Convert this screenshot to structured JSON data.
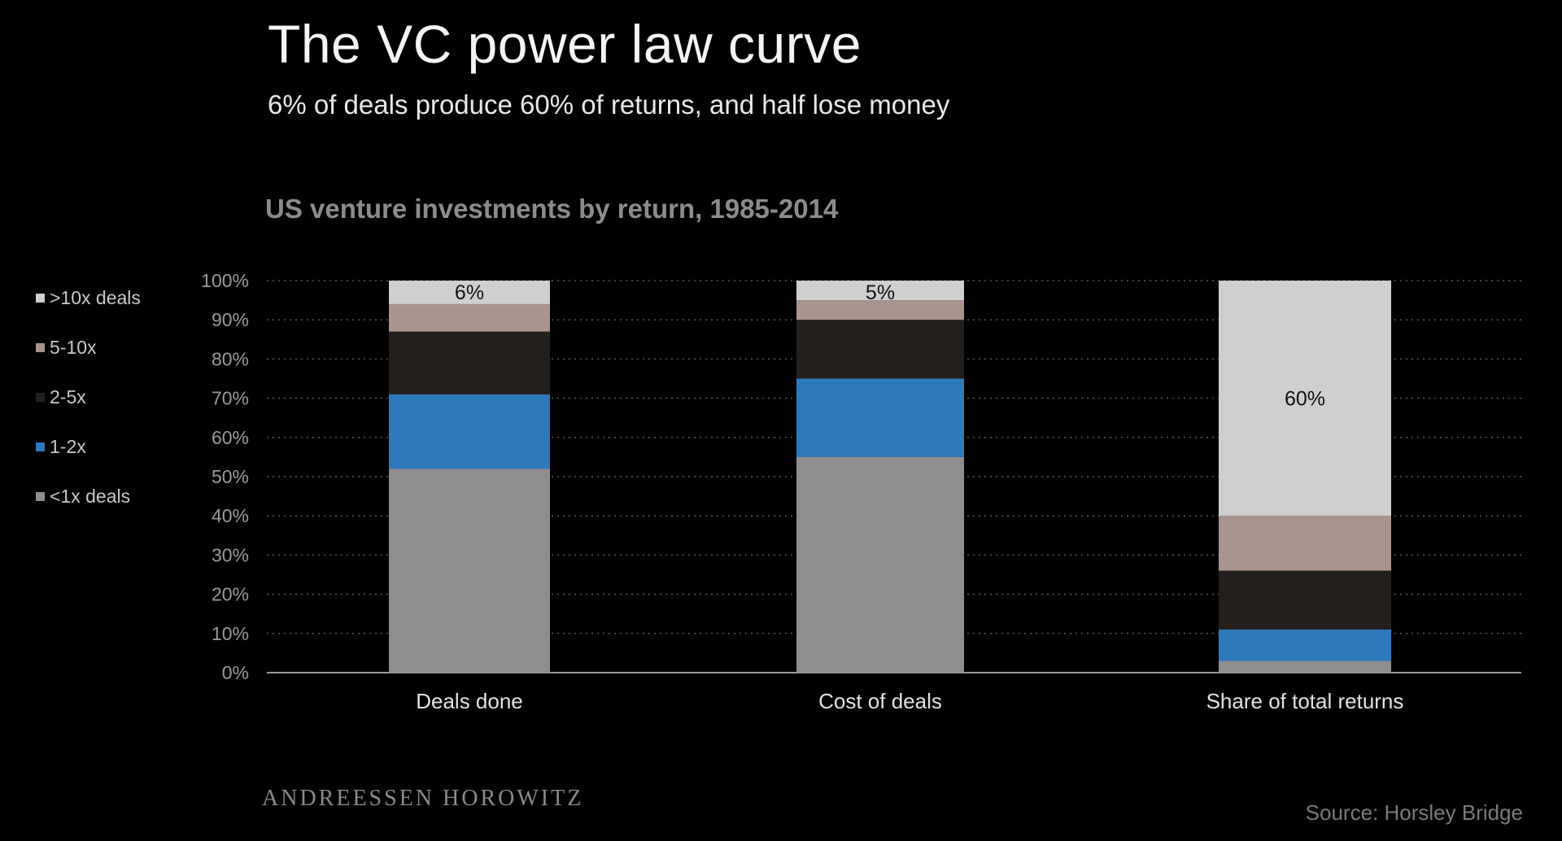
{
  "header": {
    "title": "The VC power law curve",
    "subtitle": "6% of deals produce 60% of returns, and half lose money"
  },
  "footer": {
    "brand": "ANDREESSEN HOROWITZ",
    "source": "Source: Horsley Bridge"
  },
  "chart_data": {
    "type": "bar",
    "stacked": true,
    "title": "US venture investments by return, 1985-2014",
    "categories": [
      "Deals done",
      "Cost of deals",
      "Share of total returns"
    ],
    "ylim": [
      0,
      100
    ],
    "yticks": [
      "0%",
      "10%",
      "20%",
      "30%",
      "40%",
      "50%",
      "60%",
      "70%",
      "80%",
      "90%",
      "100%"
    ],
    "grid": true,
    "legend_position": "left",
    "series": [
      {
        "name": "<1x deals",
        "color": "#8e8e8e",
        "values": [
          52,
          55,
          3
        ]
      },
      {
        "name": "1-2x",
        "color": "#2e79bb",
        "values": [
          19,
          20,
          8
        ]
      },
      {
        "name": "2-5x",
        "color": "#231f1c",
        "values": [
          16,
          15,
          15
        ]
      },
      {
        "name": "5-10x",
        "color": "#a9938d",
        "values": [
          7,
          5,
          14
        ]
      },
      {
        "name": ">10x deals",
        "color": "#cfcfcf",
        "values": [
          6,
          5,
          60
        ]
      }
    ],
    "data_labels": [
      "6%",
      "5%",
      "60%"
    ],
    "data_label_series": ">10x deals"
  }
}
